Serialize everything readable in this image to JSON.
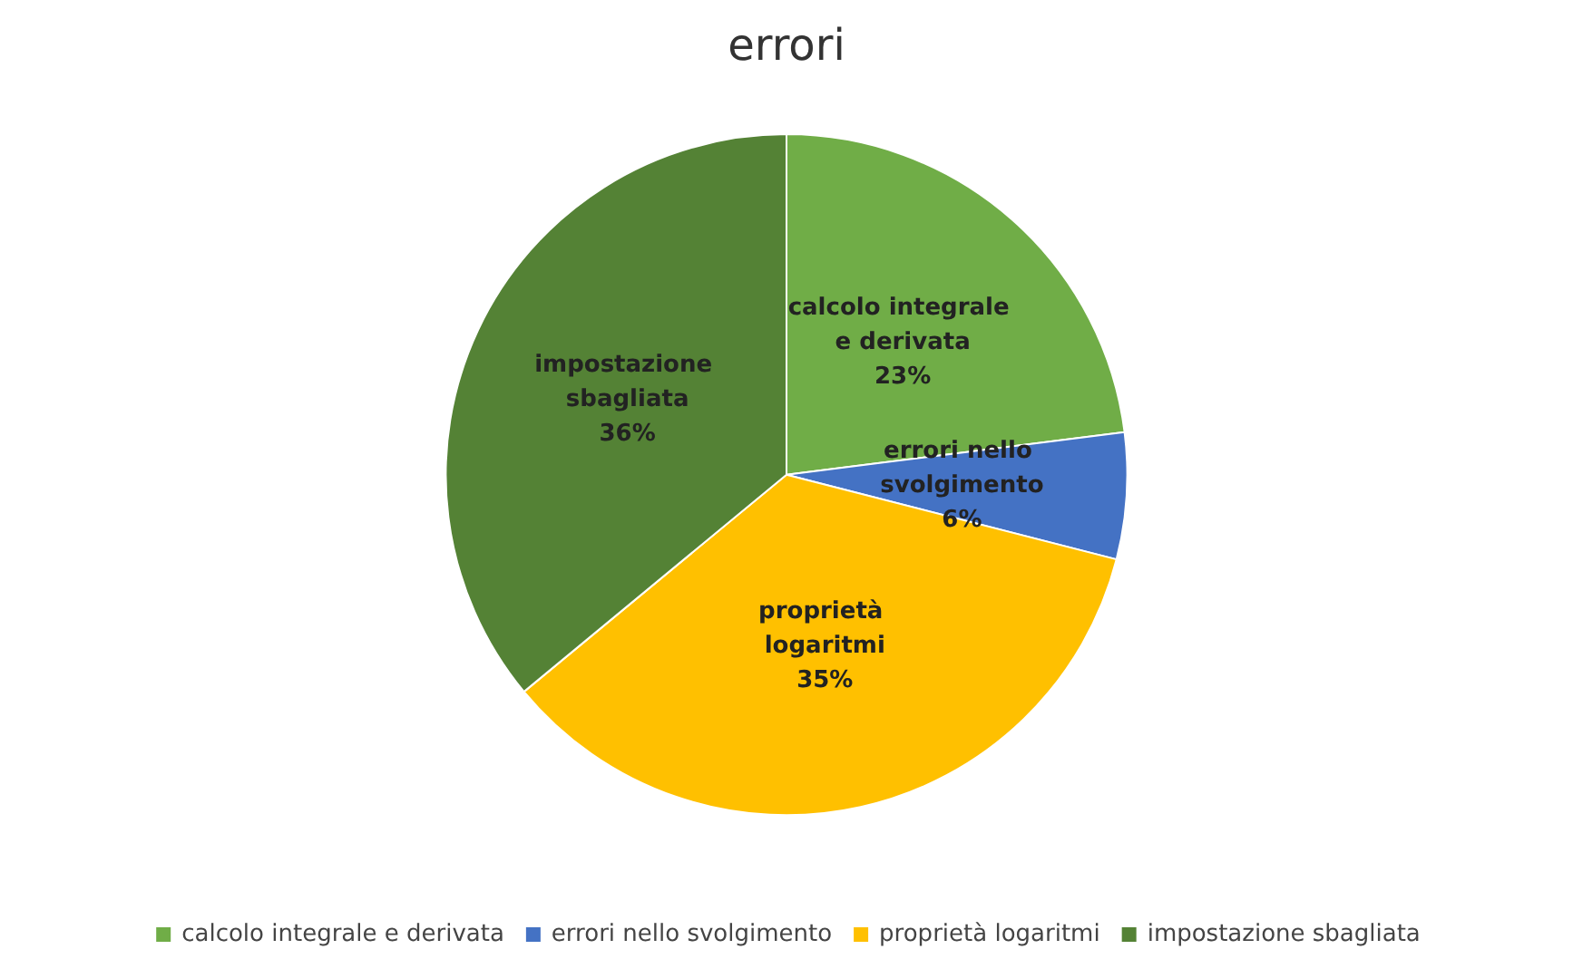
{
  "chart_data": {
    "type": "pie",
    "title": "errori",
    "categories": [
      "calcolo integrale e derivata",
      "errori nello svolgimento",
      "proprietà logaritmi",
      "impostazione sbagliata"
    ],
    "values": [
      23,
      6,
      35,
      36
    ],
    "colors": [
      "#70ad47",
      "#4472c4",
      "#ffc000",
      "#548235"
    ],
    "value_labels": [
      "23%",
      "6%",
      "35%",
      "36%"
    ],
    "legend": "bottom"
  }
}
